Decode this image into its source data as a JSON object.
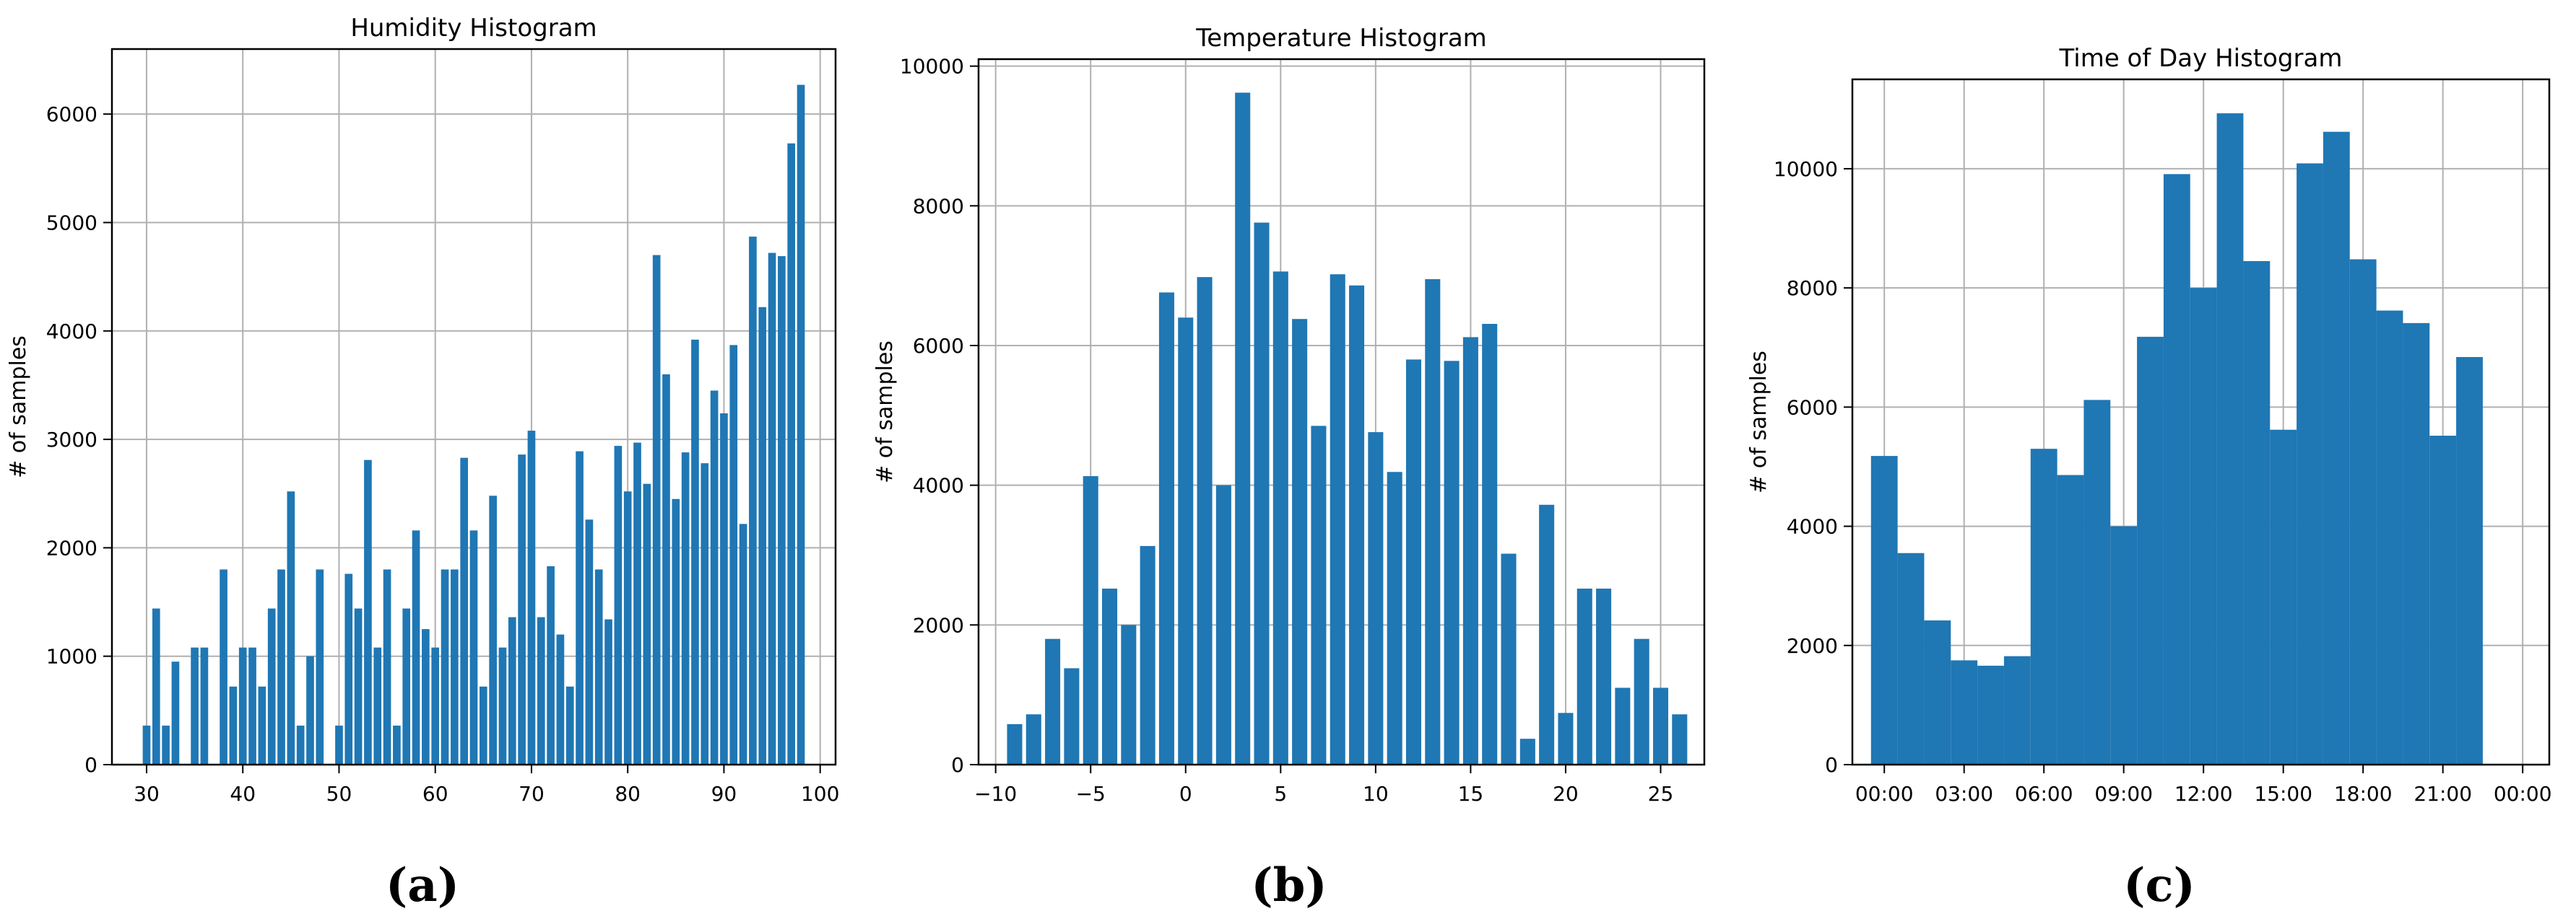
{
  "colors": {
    "bar": "#1f77b4",
    "grid": "#b0b0b0",
    "axis": "#000000",
    "text": "#000000"
  },
  "captions": {
    "a": "(a)",
    "b": "(b)",
    "c": "(c)"
  },
  "chart_data": [
    {
      "type": "bar",
      "title": "Humidity Histogram",
      "xlabel": "",
      "ylabel": "# of samples",
      "grid": true,
      "xlim": [
        26.4,
        101.6
      ],
      "ylim": [
        0,
        6600
      ],
      "xticks": [
        30,
        40,
        50,
        60,
        70,
        80,
        90,
        100
      ],
      "yticks": [
        0,
        1000,
        2000,
        3000,
        4000,
        5000,
        6000
      ],
      "bar_width": 0.8,
      "x": [
        30,
        31,
        32,
        33,
        35,
        36,
        38,
        39,
        40,
        41,
        42,
        43,
        44,
        45,
        46,
        47,
        48,
        50,
        51,
        52,
        53,
        54,
        55,
        56,
        57,
        58,
        59,
        60,
        61,
        62,
        63,
        64,
        65,
        66,
        67,
        68,
        69,
        70,
        71,
        72,
        73,
        74,
        75,
        76,
        77,
        78,
        79,
        80,
        81,
        82,
        83,
        84,
        85,
        86,
        87,
        88,
        89,
        90,
        91,
        92,
        93,
        94,
        95,
        96,
        97,
        98
      ],
      "values": [
        360,
        1440,
        360,
        950,
        1080,
        1080,
        1800,
        720,
        1080,
        1080,
        720,
        1440,
        1800,
        2520,
        360,
        1000,
        1800,
        360,
        1760,
        1440,
        2810,
        1080,
        1800,
        360,
        1440,
        2160,
        1250,
        1080,
        1800,
        1800,
        2830,
        2160,
        720,
        2480,
        1080,
        1360,
        2860,
        3080,
        1360,
        1830,
        1200,
        720,
        2890,
        2260,
        1800,
        1340,
        2940,
        2520,
        2970,
        2590,
        4700,
        3600,
        2450,
        2880,
        3920,
        2780,
        3450,
        3240,
        3870,
        2220,
        4870,
        4220,
        4720,
        4690,
        5730,
        6270
      ]
    },
    {
      "type": "bar",
      "title": "Temperature Histogram",
      "xlabel": "",
      "ylabel": "# of samples",
      "grid": true,
      "xlim": [
        -10.9,
        27.3
      ],
      "ylim": [
        0,
        10100
      ],
      "xticks": [
        -10,
        -5,
        0,
        5,
        10,
        15,
        20,
        25
      ],
      "yticks": [
        0,
        2000,
        4000,
        6000,
        8000,
        10000
      ],
      "bar_width": 0.8,
      "x": [
        -9,
        -8,
        -7,
        -6,
        -5,
        -4,
        -3,
        -2,
        -1,
        0,
        1,
        2,
        3,
        4,
        5,
        6,
        7,
        8,
        9,
        10,
        11,
        12,
        13,
        14,
        15,
        16,
        17,
        18,
        19,
        20,
        21,
        22,
        23,
        24,
        25,
        26
      ],
      "values": [
        580,
        720,
        1800,
        1380,
        4130,
        2520,
        2000,
        3130,
        6760,
        6400,
        6980,
        4000,
        9620,
        7760,
        7060,
        6380,
        4850,
        7020,
        6860,
        4760,
        4190,
        5800,
        6950,
        5780,
        6120,
        6310,
        3020,
        370,
        3720,
        740,
        2520,
        2520,
        1100,
        1800,
        1100,
        720
      ]
    },
    {
      "type": "bar",
      "title": "Time of Day Histogram",
      "xlabel": "",
      "ylabel": "# of samples",
      "grid": true,
      "xlim": [
        -1.2,
        25.0
      ],
      "ylim": [
        0,
        11500
      ],
      "xticks": [
        0,
        3,
        6,
        9,
        12,
        15,
        18,
        21,
        24
      ],
      "xtick_labels": [
        "00:00",
        "03:00",
        "06:00",
        "09:00",
        "12:00",
        "15:00",
        "18:00",
        "21:00",
        "00:00"
      ],
      "yticks": [
        0,
        2000,
        4000,
        6000,
        8000,
        10000
      ],
      "bar_width": 1.0,
      "x": [
        0,
        1,
        2,
        3,
        4,
        5,
        6,
        7,
        8,
        9,
        10,
        11,
        12,
        13,
        14,
        15,
        16,
        17,
        18,
        19,
        20,
        21,
        22,
        23
      ],
      "values": [
        5180,
        3550,
        2420,
        1750,
        1660,
        1820,
        5300,
        4860,
        6120,
        4000,
        7180,
        9910,
        8000,
        10930,
        8450,
        5620,
        10090,
        10620,
        8480,
        7620,
        7410,
        5520,
        6840,
        0
      ]
    }
  ]
}
